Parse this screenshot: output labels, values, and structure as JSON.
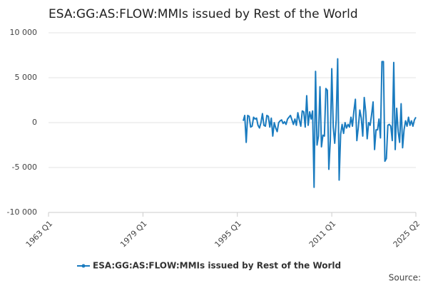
{
  "chart_data": {
    "type": "line",
    "title": "ESA:GG:AS:FLOW:MMIs issued by Rest of the World",
    "source": "Source:",
    "ylim": [
      -10000,
      10000
    ],
    "yticks": [
      {
        "value": -10000,
        "label": "-10 000"
      },
      {
        "value": -5000,
        "label": "-5 000"
      },
      0,
      {
        "value": 5000,
        "label": "5 000"
      },
      {
        "value": 10000,
        "label": "10 000"
      }
    ],
    "xlim": [
      "1963 Q1",
      "2025 Q2"
    ],
    "xticks": [
      "1963 Q1",
      "1979 Q1",
      "1995 Q1",
      "2011 Q1",
      "2025 Q2"
    ],
    "grid": true,
    "legend": "bottom",
    "series": [
      {
        "name": "ESA:GG:AS:FLOW:MMIs issued by Rest of the World",
        "color": "#1a7bbf",
        "x": [
          "1996 Q1",
          "1996 Q2",
          "1996 Q3",
          "1996 Q4",
          "1997 Q1",
          "1997 Q2",
          "1997 Q3",
          "1997 Q4",
          "1998 Q1",
          "1998 Q2",
          "1998 Q3",
          "1998 Q4",
          "1999 Q1",
          "1999 Q2",
          "1999 Q3",
          "1999 Q4",
          "2000 Q1",
          "2000 Q2",
          "2000 Q3",
          "2000 Q4",
          "2001 Q1",
          "2001 Q2",
          "2001 Q3",
          "2001 Q4",
          "2002 Q1",
          "2002 Q2",
          "2002 Q3",
          "2002 Q4",
          "2003 Q1",
          "2003 Q2",
          "2003 Q3",
          "2003 Q4",
          "2004 Q1",
          "2004 Q2",
          "2004 Q3",
          "2004 Q4",
          "2005 Q1",
          "2005 Q2",
          "2005 Q3",
          "2005 Q4",
          "2006 Q1",
          "2006 Q2",
          "2006 Q3",
          "2006 Q4",
          "2007 Q1",
          "2007 Q2",
          "2007 Q3",
          "2007 Q4",
          "2008 Q1",
          "2008 Q2",
          "2008 Q3",
          "2008 Q4",
          "2009 Q1",
          "2009 Q2",
          "2009 Q3",
          "2009 Q4",
          "2010 Q1",
          "2010 Q2",
          "2010 Q3",
          "2010 Q4",
          "2011 Q1",
          "2011 Q2",
          "2011 Q3",
          "2011 Q4",
          "2012 Q1",
          "2012 Q2",
          "2012 Q3",
          "2012 Q4",
          "2013 Q1",
          "2013 Q2",
          "2013 Q3",
          "2013 Q4",
          "2014 Q1",
          "2014 Q2",
          "2014 Q3",
          "2014 Q4",
          "2015 Q1",
          "2015 Q2",
          "2015 Q3",
          "2015 Q4",
          "2016 Q1",
          "2016 Q2",
          "2016 Q3",
          "2016 Q4",
          "2017 Q1",
          "2017 Q2",
          "2017 Q3",
          "2017 Q4",
          "2018 Q1",
          "2018 Q2",
          "2018 Q3",
          "2018 Q4",
          "2019 Q1",
          "2019 Q2",
          "2019 Q3",
          "2019 Q4",
          "2020 Q1",
          "2020 Q2",
          "2020 Q3",
          "2020 Q4",
          "2021 Q1",
          "2021 Q2",
          "2021 Q3",
          "2021 Q4",
          "2022 Q1",
          "2022 Q2",
          "2022 Q3",
          "2022 Q4",
          "2023 Q1",
          "2023 Q2",
          "2023 Q3",
          "2023 Q4",
          "2024 Q1",
          "2024 Q2",
          "2024 Q3",
          "2024 Q4",
          "2025 Q1",
          "2025 Q2"
        ],
        "values": [
          200,
          800,
          -2200,
          800,
          700,
          -500,
          -400,
          600,
          400,
          500,
          -300,
          -600,
          0,
          1000,
          -300,
          -400,
          800,
          700,
          -500,
          500,
          -1500,
          0,
          -600,
          -1000,
          0,
          200,
          300,
          -100,
          100,
          -200,
          400,
          600,
          800,
          300,
          -200,
          400,
          -300,
          1100,
          300,
          -400,
          1300,
          1200,
          -500,
          3000,
          -300,
          1200,
          400,
          1300,
          -7200,
          5700,
          -2500,
          -1500,
          4000,
          -2700,
          -1400,
          -1500,
          3800,
          3600,
          -5200,
          -2000,
          6000,
          -500,
          -2300,
          300,
          7100,
          -6400,
          -1300,
          -200,
          -1200,
          0,
          -600,
          -200,
          -500,
          600,
          -400,
          1300,
          2600,
          -2000,
          -500,
          1400,
          500,
          -1500,
          2800,
          1200,
          -1800,
          0,
          -300,
          900,
          2300,
          -3000,
          -800,
          -800,
          400,
          -1700,
          6800,
          6800,
          -4300,
          -4000,
          -300,
          -200,
          -400,
          -2000,
          6700,
          -3000,
          1600,
          -1000,
          -2200,
          2100,
          -2800,
          -800,
          200,
          -400,
          600,
          -300,
          200,
          -400,
          300,
          600
        ]
      }
    ]
  }
}
